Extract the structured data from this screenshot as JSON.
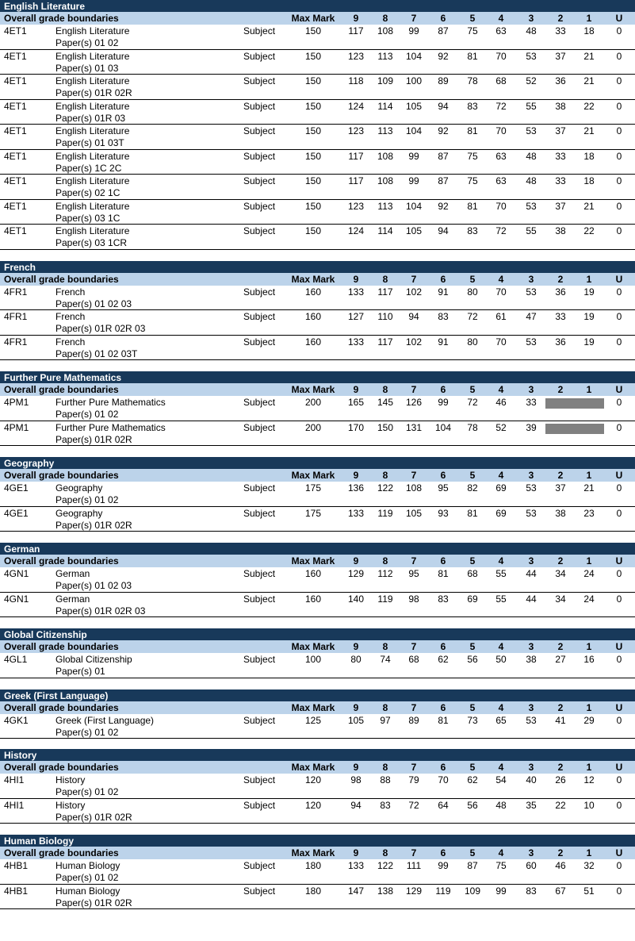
{
  "columns": {
    "section_header": "Overall grade boundaries",
    "max_mark": "Max Mark",
    "grades": [
      "9",
      "8",
      "7",
      "6",
      "5",
      "4",
      "3",
      "2",
      "1",
      "U"
    ]
  },
  "sections": [
    {
      "title": "English Literature",
      "rows": [
        {
          "code": "4ET1",
          "name": "English Literature",
          "papers": "Paper(s) 01 02",
          "type": "Subject",
          "max": "150",
          "grades": [
            "117",
            "108",
            "99",
            "87",
            "75",
            "63",
            "48",
            "33",
            "18",
            "0"
          ]
        },
        {
          "code": "4ET1",
          "name": "English Literature",
          "papers": "Paper(s) 01 03",
          "type": "Subject",
          "max": "150",
          "grades": [
            "123",
            "113",
            "104",
            "92",
            "81",
            "70",
            "53",
            "37",
            "21",
            "0"
          ]
        },
        {
          "code": "4ET1",
          "name": "English Literature",
          "papers": "Paper(s) 01R 02R",
          "type": "Subject",
          "max": "150",
          "grades": [
            "118",
            "109",
            "100",
            "89",
            "78",
            "68",
            "52",
            "36",
            "21",
            "0"
          ]
        },
        {
          "code": "4ET1",
          "name": "English Literature",
          "papers": "Paper(s) 01R 03",
          "type": "Subject",
          "max": "150",
          "grades": [
            "124",
            "114",
            "105",
            "94",
            "83",
            "72",
            "55",
            "38",
            "22",
            "0"
          ]
        },
        {
          "code": "4ET1",
          "name": "English Literature",
          "papers": "Paper(s) 01 03T",
          "type": "Subject",
          "max": "150",
          "grades": [
            "123",
            "113",
            "104",
            "92",
            "81",
            "70",
            "53",
            "37",
            "21",
            "0"
          ]
        },
        {
          "code": "4ET1",
          "name": "English Literature",
          "papers": "Paper(s) 1C 2C",
          "type": "Subject",
          "max": "150",
          "grades": [
            "117",
            "108",
            "99",
            "87",
            "75",
            "63",
            "48",
            "33",
            "18",
            "0"
          ]
        },
        {
          "code": "4ET1",
          "name": "English Literature",
          "papers": "Paper(s) 02 1C",
          "type": "Subject",
          "max": "150",
          "grades": [
            "117",
            "108",
            "99",
            "87",
            "75",
            "63",
            "48",
            "33",
            "18",
            "0"
          ]
        },
        {
          "code": "4ET1",
          "name": "English Literature",
          "papers": "Paper(s) 03 1C",
          "type": "Subject",
          "max": "150",
          "grades": [
            "123",
            "113",
            "104",
            "92",
            "81",
            "70",
            "53",
            "37",
            "21",
            "0"
          ]
        },
        {
          "code": "4ET1",
          "name": "English Literature",
          "papers": "Paper(s) 03 1CR",
          "type": "Subject",
          "max": "150",
          "grades": [
            "124",
            "114",
            "105",
            "94",
            "83",
            "72",
            "55",
            "38",
            "22",
            "0"
          ]
        }
      ]
    },
    {
      "title": "French",
      "rows": [
        {
          "code": "4FR1",
          "name": "French",
          "papers": "Paper(s) 01 02 03",
          "type": "Subject",
          "max": "160",
          "grades": [
            "133",
            "117",
            "102",
            "91",
            "80",
            "70",
            "53",
            "36",
            "19",
            "0"
          ]
        },
        {
          "code": "4FR1",
          "name": "French",
          "papers": "Paper(s) 01R 02R 03",
          "type": "Subject",
          "max": "160",
          "grades": [
            "127",
            "110",
            "94",
            "83",
            "72",
            "61",
            "47",
            "33",
            "19",
            "0"
          ]
        },
        {
          "code": "4FR1",
          "name": "French",
          "papers": "Paper(s) 01 02 03T",
          "type": "Subject",
          "max": "160",
          "grades": [
            "133",
            "117",
            "102",
            "91",
            "80",
            "70",
            "53",
            "36",
            "19",
            "0"
          ]
        }
      ]
    },
    {
      "title": "Further Pure Mathematics",
      "rows": [
        {
          "code": "4PM1",
          "name": "Further Pure Mathematics",
          "papers": "Paper(s) 01 02",
          "type": "Subject",
          "max": "200",
          "grades": [
            "165",
            "145",
            "126",
            "99",
            "72",
            "46",
            "33",
            "",
            "",
            "0"
          ],
          "greyed": true
        },
        {
          "code": "4PM1",
          "name": "Further Pure Mathematics",
          "papers": "Paper(s) 01R 02R",
          "type": "Subject",
          "max": "200",
          "grades": [
            "170",
            "150",
            "131",
            "104",
            "78",
            "52",
            "39",
            "",
            "",
            "0"
          ],
          "greyed": true
        }
      ]
    },
    {
      "title": "Geography",
      "rows": [
        {
          "code": "4GE1",
          "name": "Geography",
          "papers": "Paper(s) 01 02",
          "type": "Subject",
          "max": "175",
          "grades": [
            "136",
            "122",
            "108",
            "95",
            "82",
            "69",
            "53",
            "37",
            "21",
            "0"
          ]
        },
        {
          "code": "4GE1",
          "name": "Geography",
          "papers": "Paper(s) 01R 02R",
          "type": "Subject",
          "max": "175",
          "grades": [
            "133",
            "119",
            "105",
            "93",
            "81",
            "69",
            "53",
            "38",
            "23",
            "0"
          ]
        }
      ]
    },
    {
      "title": "German",
      "rows": [
        {
          "code": "4GN1",
          "name": "German",
          "papers": "Paper(s) 01 02 03",
          "type": "Subject",
          "max": "160",
          "grades": [
            "129",
            "112",
            "95",
            "81",
            "68",
            "55",
            "44",
            "34",
            "24",
            "0"
          ]
        },
        {
          "code": "4GN1",
          "name": "German",
          "papers": "Paper(s) 01R 02R 03",
          "type": "Subject",
          "max": "160",
          "grades": [
            "140",
            "119",
            "98",
            "83",
            "69",
            "55",
            "44",
            "34",
            "24",
            "0"
          ]
        }
      ]
    },
    {
      "title": "Global Citizenship",
      "rows": [
        {
          "code": "4GL1",
          "name": "Global Citizenship",
          "papers": "Paper(s) 01",
          "type": "Subject",
          "max": "100",
          "grades": [
            "80",
            "74",
            "68",
            "62",
            "56",
            "50",
            "38",
            "27",
            "16",
            "0"
          ]
        }
      ]
    },
    {
      "title": "Greek (First Language)",
      "rows": [
        {
          "code": "4GK1",
          "name": "Greek (First Language)",
          "papers": "Paper(s) 01 02",
          "type": "Subject",
          "max": "125",
          "grades": [
            "105",
            "97",
            "89",
            "81",
            "73",
            "65",
            "53",
            "41",
            "29",
            "0"
          ]
        }
      ]
    },
    {
      "title": "History",
      "rows": [
        {
          "code": "4HI1",
          "name": "History",
          "papers": "Paper(s) 01 02",
          "type": "Subject",
          "max": "120",
          "grades": [
            "98",
            "88",
            "79",
            "70",
            "62",
            "54",
            "40",
            "26",
            "12",
            "0"
          ]
        },
        {
          "code": "4HI1",
          "name": "History",
          "papers": "Paper(s) 01R 02R",
          "type": "Subject",
          "max": "120",
          "grades": [
            "94",
            "83",
            "72",
            "64",
            "56",
            "48",
            "35",
            "22",
            "10",
            "0"
          ]
        }
      ]
    },
    {
      "title": "Human Biology",
      "rows": [
        {
          "code": "4HB1",
          "name": "Human Biology",
          "papers": "Paper(s) 01 02",
          "type": "Subject",
          "max": "180",
          "grades": [
            "133",
            "122",
            "111",
            "99",
            "87",
            "75",
            "60",
            "46",
            "32",
            "0"
          ]
        },
        {
          "code": "4HB1",
          "name": "Human Biology",
          "papers": "Paper(s) 01R 02R",
          "type": "Subject",
          "max": "180",
          "grades": [
            "147",
            "138",
            "129",
            "119",
            "109",
            "99",
            "83",
            "67",
            "51",
            "0"
          ]
        }
      ]
    }
  ]
}
